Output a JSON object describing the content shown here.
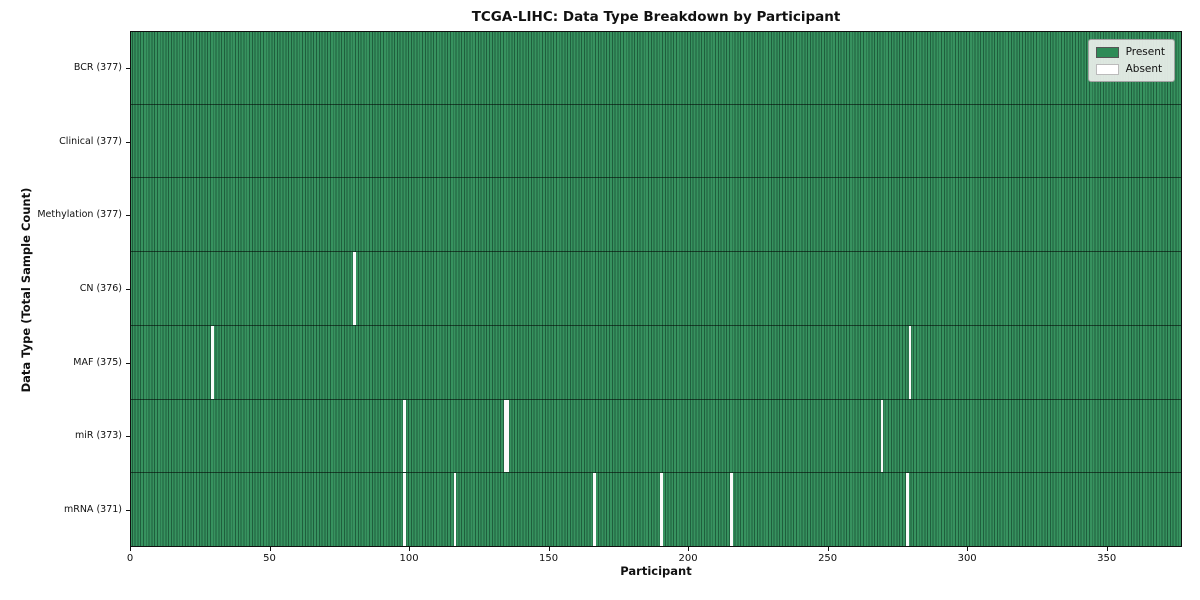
{
  "title": "TCGA-LIHC: Data Type Breakdown by Participant",
  "colors": {
    "present": "#2e8b57",
    "present_stripe_dark": "#1f5f3d",
    "absent": "#fbfbfb",
    "swatch_border": "#555555",
    "absent_swatch_border": "#bbbbbb"
  },
  "chart_data": {
    "type": "heatmap",
    "title": "TCGA-LIHC: Data Type Breakdown by Participant",
    "xlabel": "Participant",
    "ylabel": "Data Type (Total Sample Count)",
    "x_range": [
      0,
      377
    ],
    "x_ticks": [
      0,
      50,
      100,
      150,
      200,
      250,
      300,
      350
    ],
    "n_participants": 377,
    "grid": false,
    "legend_position": "upper right",
    "legend": {
      "entries": [
        {
          "label": "Present",
          "color": "#2e8b57"
        },
        {
          "label": "Absent",
          "color": "#ffffff"
        }
      ]
    },
    "rows": [
      {
        "label": "BCR (377)",
        "data_type": "BCR",
        "total": 377,
        "absent_participants": []
      },
      {
        "label": "Clinical (377)",
        "data_type": "Clinical",
        "total": 377,
        "absent_participants": []
      },
      {
        "label": "Methylation (377)",
        "data_type": "Methylation",
        "total": 377,
        "absent_participants": []
      },
      {
        "label": "CN (376)",
        "data_type": "CN",
        "total": 376,
        "absent_participants": [
          80
        ]
      },
      {
        "label": "MAF (375)",
        "data_type": "MAF",
        "total": 375,
        "absent_participants": [
          29,
          279
        ]
      },
      {
        "label": "miR (373)",
        "data_type": "miR",
        "total": 373,
        "absent_participants": [
          98,
          134,
          135,
          269
        ]
      },
      {
        "label": "mRNA (371)",
        "data_type": "mRNA",
        "total": 371,
        "absent_participants": [
          98,
          116,
          166,
          190,
          215,
          278
        ]
      }
    ]
  }
}
